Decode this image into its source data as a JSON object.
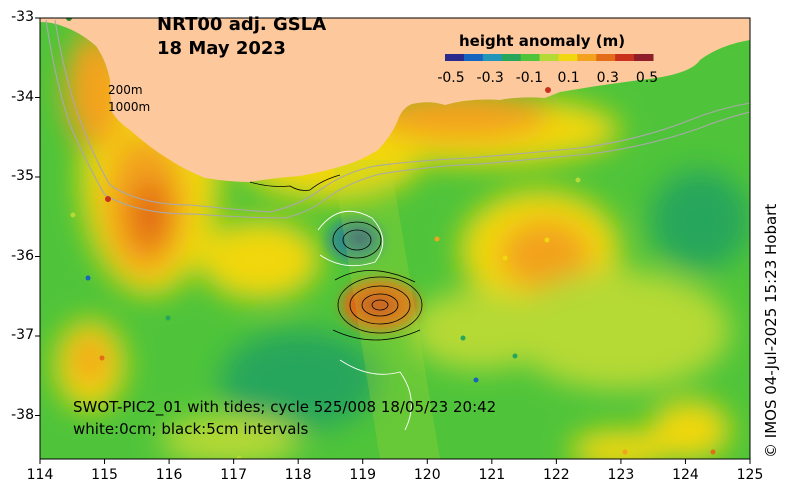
{
  "title": {
    "line1": "NRT00 adj. GSLA",
    "line2": "18 May 2023"
  },
  "colorbar": {
    "title": "height anomaly (m)",
    "ticks": [
      "-0.5",
      "-0.3",
      "-0.1",
      "0.1",
      "0.3",
      "0.5"
    ],
    "colors": [
      "#2b2a8c",
      "#1565c0",
      "#2196b8",
      "#26a65b",
      "#4fc43a",
      "#b5d935",
      "#f1d70f",
      "#f3a21d",
      "#e26c18",
      "#c8301c",
      "#8f1d2a"
    ]
  },
  "axes": {
    "x_ticks": [
      "114",
      "115",
      "116",
      "117",
      "118",
      "119",
      "120",
      "121",
      "122",
      "123",
      "124",
      "125"
    ],
    "y_ticks": [
      "-33",
      "-34",
      "-35",
      "-36",
      "-37",
      "-38"
    ]
  },
  "contour_labels": {
    "line1": "200m",
    "line2": "1000m"
  },
  "annotation": {
    "line1": "SWOT-PIC2_01 with tides; cycle 525/008 18/05/23 20:42",
    "line2": "white:0cm; black:5cm intervals"
  },
  "credit": "© IMOS 04-Jul-2025 15:23 Hobart",
  "colors": {
    "land": "#fcc89c",
    "sea_base": "#4fc43a"
  }
}
